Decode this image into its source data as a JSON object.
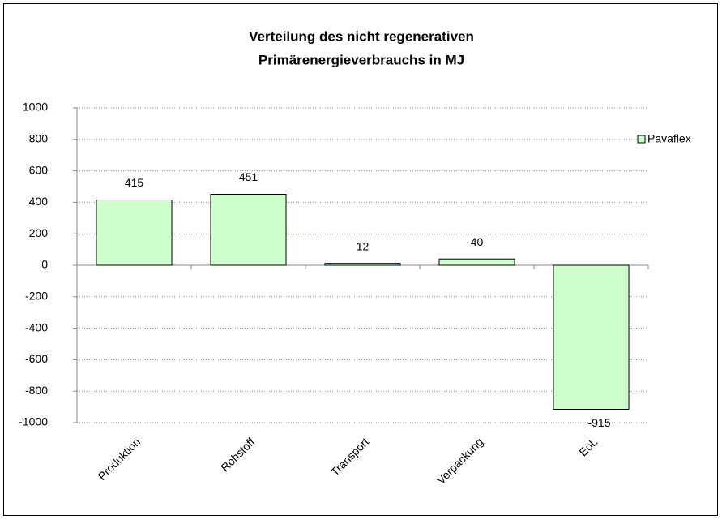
{
  "chart_data": {
    "type": "bar",
    "title": [
      "Verteilung des nicht regenerativen",
      "Primärenergieverbrauchs in MJ"
    ],
    "categories": [
      "Produktion",
      "Rohstoff",
      "Transport",
      "Verpackung",
      "EoL"
    ],
    "series": [
      {
        "name": "Pavaflex",
        "color": "#ccffcc",
        "values": [
          415,
          451,
          12,
          40,
          -915
        ]
      }
    ],
    "ylim": [
      -1000,
      1000
    ],
    "yticks": [
      -1000,
      -800,
      -600,
      -400,
      -200,
      0,
      200,
      400,
      600,
      800,
      1000
    ],
    "grid": true,
    "legend": "right"
  }
}
